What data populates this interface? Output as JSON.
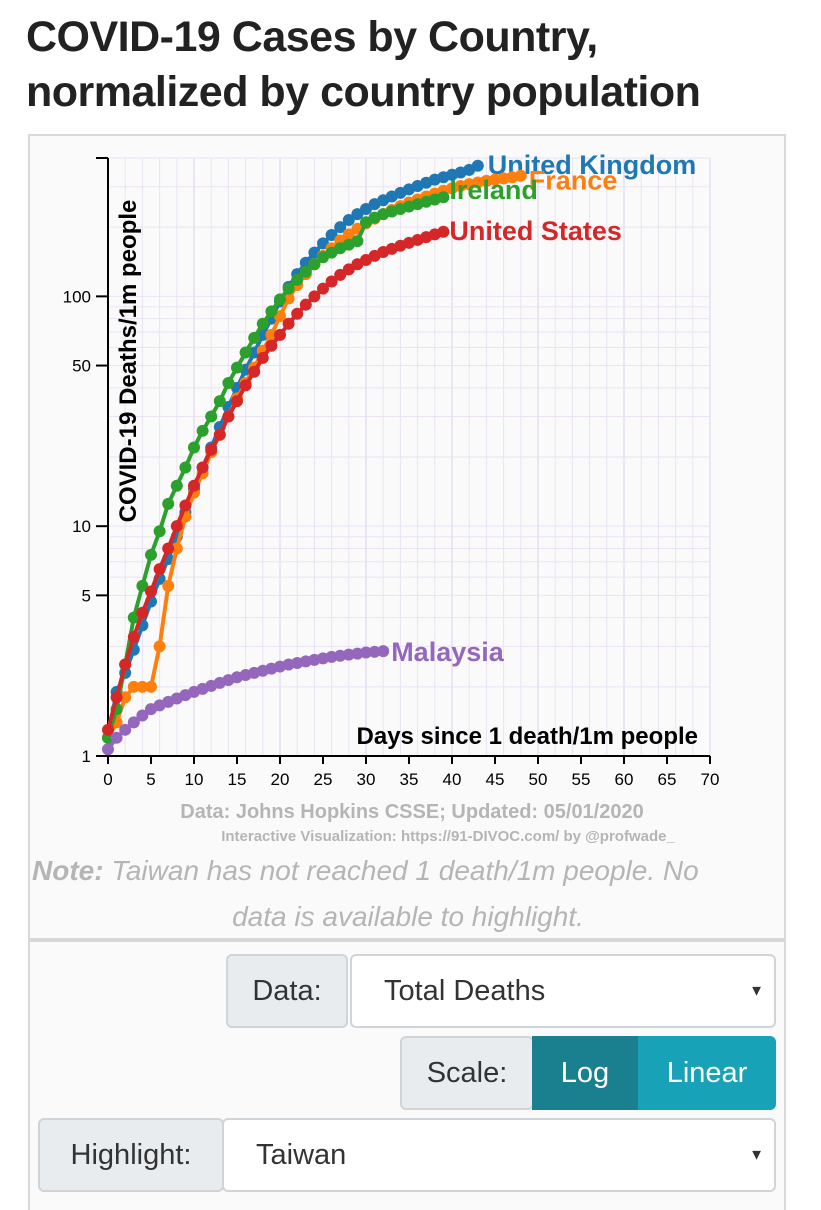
{
  "title": "COVID-19 Cases by Country, normalized by country population",
  "chart_data": {
    "type": "line",
    "ylabel": "COVID-19 Deaths/1m people",
    "xlabel": "Days since 1 death/1m people",
    "yscale": "log",
    "ylim": [
      1,
      400
    ],
    "xlim": [
      0,
      70
    ],
    "xticks": [
      0,
      5,
      10,
      15,
      20,
      25,
      30,
      35,
      40,
      45,
      50,
      55,
      60,
      65,
      70
    ],
    "yticks": [
      1,
      5,
      10,
      50,
      100
    ],
    "grid": true,
    "series": [
      {
        "name": "United Kingdom",
        "color": "#1f77b4",
        "x": [
          0,
          1,
          2,
          3,
          4,
          5,
          6,
          7,
          8,
          9,
          10,
          11,
          12,
          13,
          14,
          15,
          16,
          17,
          18,
          19,
          20,
          21,
          22,
          23,
          24,
          25,
          26,
          27,
          28,
          29,
          30,
          31,
          32,
          33,
          34,
          35,
          36,
          37,
          38,
          39,
          40,
          41,
          42,
          43
        ],
        "y": [
          1.2,
          1.9,
          2.3,
          2.9,
          3.7,
          4.7,
          5.9,
          7.2,
          9.0,
          11.5,
          14.5,
          18.0,
          22.0,
          27.0,
          33.0,
          40.0,
          48.0,
          57.0,
          68.0,
          80.0,
          95.0,
          110,
          125,
          140,
          155,
          170,
          185,
          200,
          215,
          228,
          240,
          252,
          262,
          272,
          282,
          292,
          302,
          312,
          322,
          330,
          338,
          346,
          355,
          370
        ]
      },
      {
        "name": "France",
        "color": "#ff7f0e",
        "x": [
          0,
          1,
          2,
          3,
          4,
          5,
          6,
          7,
          8,
          9,
          10,
          11,
          12,
          13,
          14,
          15,
          16,
          17,
          18,
          19,
          20,
          21,
          22,
          23,
          24,
          25,
          26,
          27,
          28,
          29,
          30,
          31,
          32,
          33,
          34,
          35,
          36,
          37,
          38,
          39,
          40,
          41,
          42,
          43,
          44,
          45,
          46,
          47,
          48
        ],
        "y": [
          1.2,
          1.4,
          1.8,
          2.0,
          2.0,
          2.0,
          3.0,
          5.5,
          8.0,
          11.0,
          14.0,
          17.0,
          21.0,
          25.0,
          30.0,
          36.0,
          42.0,
          49.0,
          58.0,
          68.0,
          82.0,
          98.0,
          112,
          125,
          138,
          150,
          162,
          175,
          186,
          197,
          208,
          218,
          228,
          238,
          247,
          256,
          264,
          272,
          280,
          288,
          295,
          302,
          308,
          313,
          318,
          322,
          326,
          330,
          335
        ]
      },
      {
        "name": "Ireland",
        "color": "#2ca02c",
        "x": [
          0,
          1,
          2,
          3,
          4,
          5,
          6,
          7,
          8,
          9,
          10,
          11,
          12,
          13,
          14,
          15,
          16,
          17,
          18,
          19,
          20,
          21,
          22,
          23,
          24,
          25,
          26,
          27,
          28,
          29,
          30,
          31,
          32,
          33,
          34,
          35,
          36,
          37,
          38,
          39
        ],
        "y": [
          1.2,
          1.6,
          2.5,
          4.0,
          5.5,
          7.5,
          9.5,
          12.5,
          15.0,
          18.0,
          22.0,
          26.0,
          30.0,
          35.0,
          42.0,
          49.0,
          57.0,
          66.0,
          76.0,
          86.0,
          97.0,
          108,
          118,
          128,
          138,
          148,
          155,
          162,
          168,
          174,
          210,
          220,
          228,
          234,
          240,
          246,
          252,
          258,
          264,
          270
        ]
      },
      {
        "name": "United States",
        "color": "#d62728",
        "x": [
          0,
          1,
          2,
          3,
          4,
          5,
          6,
          7,
          8,
          9,
          10,
          11,
          12,
          13,
          14,
          15,
          16,
          17,
          18,
          19,
          20,
          21,
          22,
          23,
          24,
          25,
          26,
          27,
          28,
          29,
          30,
          31,
          32,
          33,
          34,
          35,
          36,
          37,
          38,
          39
        ],
        "y": [
          1.3,
          1.8,
          2.5,
          3.3,
          4.2,
          5.2,
          6.5,
          8.0,
          10.0,
          12.3,
          15.0,
          18.0,
          21.5,
          25.0,
          30.0,
          35.0,
          41.0,
          47.0,
          54.0,
          61.0,
          68.0,
          76.0,
          84.0,
          92.0,
          100,
          108,
          116,
          124,
          131,
          138,
          144,
          150,
          156,
          161,
          166,
          171,
          176,
          181,
          186,
          191
        ]
      },
      {
        "name": "Malaysia",
        "color": "#9467bd",
        "x": [
          0,
          1,
          2,
          3,
          4,
          5,
          6,
          7,
          8,
          9,
          10,
          11,
          12,
          13,
          14,
          15,
          16,
          17,
          18,
          19,
          20,
          21,
          22,
          23,
          24,
          25,
          26,
          27,
          28,
          29,
          30,
          31,
          32
        ],
        "y": [
          1.07,
          1.2,
          1.3,
          1.4,
          1.5,
          1.6,
          1.66,
          1.72,
          1.78,
          1.84,
          1.9,
          1.96,
          2.02,
          2.08,
          2.14,
          2.2,
          2.25,
          2.3,
          2.35,
          2.4,
          2.45,
          2.5,
          2.54,
          2.58,
          2.62,
          2.66,
          2.7,
          2.73,
          2.76,
          2.79,
          2.82,
          2.84,
          2.86
        ]
      }
    ]
  },
  "source_note": "Data: Johns Hopkins CSSE; Updated: 05/01/2020",
  "attribution": "Interactive Visualization: https://91-DIVOC.com/ by @profwade_",
  "note_prefix": "Note:",
  "note_line1": " Taiwan has not reached 1 death/1m people. No",
  "note_line2": "data is available to highlight.",
  "controls": {
    "data_label": "Data:",
    "data_value": "Total Deaths",
    "scale_label": "Scale:",
    "scale_log": "Log",
    "scale_linear": "Linear",
    "highlight_label": "Highlight:",
    "highlight_value": "Taiwan",
    "caret": "▼",
    "active_color": "#1a7f8f",
    "inactive_color": "#17a2b8"
  }
}
